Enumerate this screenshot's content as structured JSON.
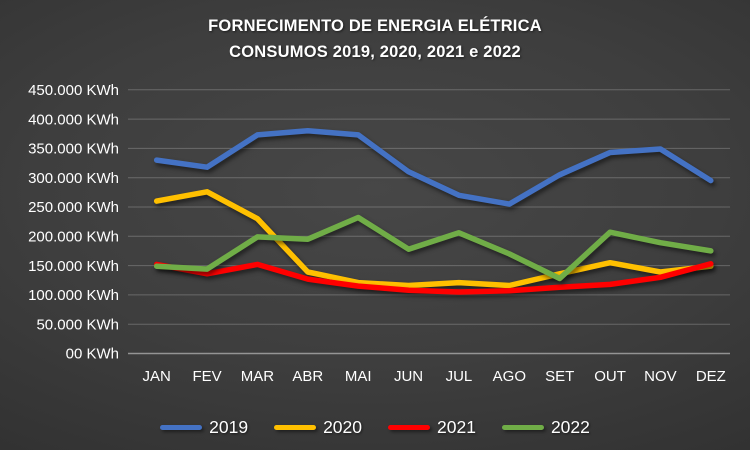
{
  "title": {
    "line1": "FORNECIMENTO DE ENERGIA ELÉTRICA",
    "line2": "CONSUMOS 2019, 2020, 2021 e 2022"
  },
  "colors": {
    "text": "#FFFFFF",
    "series_2019": "#4472C4",
    "series_2020": "#FFC000",
    "series_2021": "#FF0000",
    "series_2022": "#70AD47"
  },
  "chart_data": {
    "type": "line",
    "title": "FORNECIMENTO DE ENERGIA ELÉTRICA — CONSUMOS 2019, 2020, 2021 e 2022",
    "categories": [
      "JAN",
      "FEV",
      "MAR",
      "ABR",
      "MAI",
      "JUN",
      "JUL",
      "AGO",
      "SET",
      "OUT",
      "NOV",
      "DEZ"
    ],
    "series": [
      {
        "name": "2019",
        "color": "#4472C4",
        "values": [
          330000,
          318000,
          373000,
          380000,
          373000,
          310000,
          270000,
          255000,
          305000,
          343000,
          349000,
          295000
        ]
      },
      {
        "name": "2020",
        "color": "#FFC000",
        "values": [
          260000,
          276000,
          230000,
          139000,
          121000,
          116000,
          121000,
          116000,
          136000,
          155000,
          139000,
          149000
        ]
      },
      {
        "name": "2021",
        "color": "#FF0000",
        "values": [
          152000,
          136000,
          152000,
          127000,
          115000,
          108000,
          105000,
          107000,
          113000,
          118000,
          130000,
          153000
        ]
      },
      {
        "name": "2022",
        "color": "#70AD47",
        "values": [
          149000,
          144000,
          199000,
          195000,
          232000,
          178000,
          206000,
          170000,
          128000,
          207000,
          189000,
          175000
        ]
      }
    ],
    "ylim": [
      0,
      450000
    ],
    "ytick_step": 50000,
    "ytick_labels": [
      "00 KWh",
      "50.000 KWh",
      "100.000 KWh",
      "150.000 KWh",
      "200.000 KWh",
      "250.000 KWh",
      "300.000 KWh",
      "350.000 KWh",
      "400.000 KWh",
      "450.000 KWh"
    ],
    "grid": true,
    "legend_position": "bottom",
    "unit": "KWh"
  }
}
